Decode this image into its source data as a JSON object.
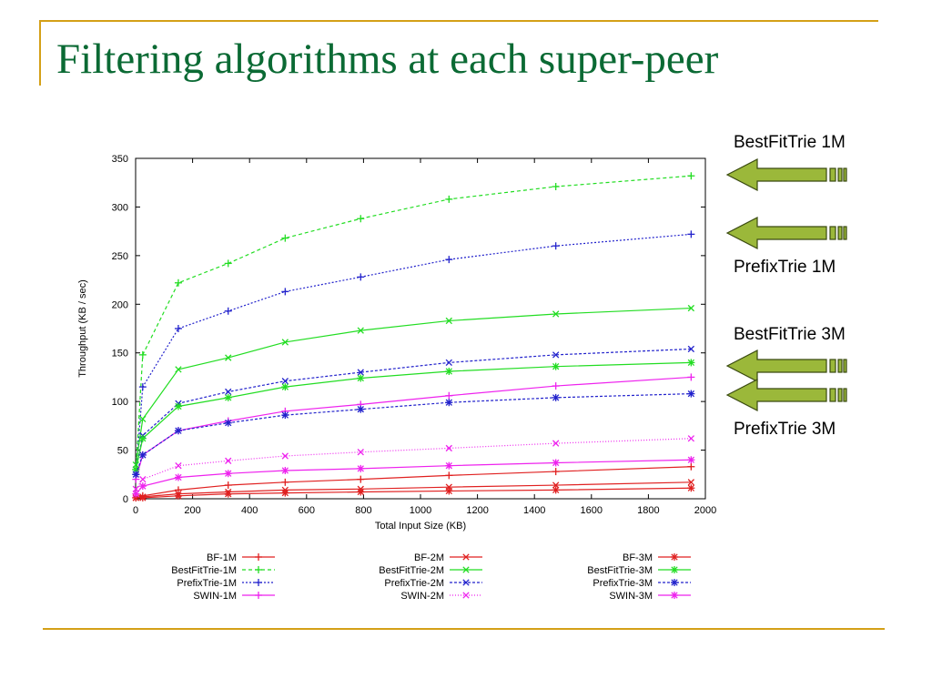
{
  "slide": {
    "title": "Filtering algorithms at each super-peer",
    "accent_color": "#d4a017",
    "title_color": "#0b6a34"
  },
  "callouts": [
    {
      "label": "BestFitTrie 1M"
    },
    {
      "label": "PrefixTrie 1M"
    },
    {
      "label": "BestFitTrie 3M"
    },
    {
      "label": "PrefixTrie 3M"
    }
  ],
  "arrow_style": {
    "fill": "#9bb83a",
    "stroke": "#3a4a10"
  },
  "chart_data": {
    "type": "line",
    "xlabel": "Total Input Size (KB)",
    "ylabel": "Throughput (KB / sec)",
    "xlim": [
      0,
      2000
    ],
    "ylim": [
      0,
      350
    ],
    "xticks": [
      0,
      200,
      400,
      600,
      800,
      1000,
      1200,
      1400,
      1600,
      1800,
      2000
    ],
    "yticks": [
      0,
      50,
      100,
      150,
      200,
      250,
      300,
      350
    ],
    "grid": false,
    "legend_position": "bottom",
    "series": [
      {
        "name": "BF-1M",
        "color": "#e02020",
        "marker": "plus",
        "dash": "",
        "points": [
          [
            1,
            1
          ],
          [
            25,
            3
          ],
          [
            150,
            9
          ],
          [
            325,
            14
          ],
          [
            525,
            17
          ],
          [
            790,
            20
          ],
          [
            1100,
            24
          ],
          [
            1475,
            28
          ],
          [
            1950,
            33
          ]
        ]
      },
      {
        "name": "BestFitTrie-1M",
        "color": "#22dd22",
        "marker": "plus",
        "dash": "4,3",
        "points": [
          [
            1,
            30
          ],
          [
            25,
            148
          ],
          [
            150,
            222
          ],
          [
            325,
            242
          ],
          [
            525,
            268
          ],
          [
            790,
            288
          ],
          [
            1100,
            308
          ],
          [
            1475,
            321
          ],
          [
            1950,
            332
          ]
        ]
      },
      {
        "name": "PrefixTrie-1M",
        "color": "#2222cc",
        "marker": "plus",
        "dash": "2,2",
        "points": [
          [
            1,
            25
          ],
          [
            25,
            115
          ],
          [
            150,
            175
          ],
          [
            325,
            193
          ],
          [
            525,
            213
          ],
          [
            790,
            228
          ],
          [
            1100,
            246
          ],
          [
            1475,
            260
          ],
          [
            1950,
            272
          ]
        ]
      },
      {
        "name": "SWIN-1M",
        "color": "#ee22ee",
        "marker": "plus",
        "dash": "",
        "points": [
          [
            1,
            20
          ],
          [
            25,
            45
          ],
          [
            150,
            70
          ],
          [
            325,
            80
          ],
          [
            525,
            90
          ],
          [
            790,
            97
          ],
          [
            1100,
            106
          ],
          [
            1475,
            116
          ],
          [
            1950,
            125
          ]
        ]
      },
      {
        "name": "BF-2M",
        "color": "#e02020",
        "marker": "x",
        "dash": "",
        "points": [
          [
            1,
            1
          ],
          [
            25,
            2
          ],
          [
            150,
            5
          ],
          [
            325,
            7
          ],
          [
            525,
            9
          ],
          [
            790,
            10
          ],
          [
            1100,
            12
          ],
          [
            1475,
            14
          ],
          [
            1950,
            17
          ]
        ]
      },
      {
        "name": "BestFitTrie-2M",
        "color": "#22dd22",
        "marker": "x",
        "dash": "",
        "points": [
          [
            1,
            35
          ],
          [
            25,
            82
          ],
          [
            150,
            133
          ],
          [
            325,
            145
          ],
          [
            525,
            161
          ],
          [
            790,
            173
          ],
          [
            1100,
            183
          ],
          [
            1475,
            190
          ],
          [
            1950,
            196
          ]
        ]
      },
      {
        "name": "PrefixTrie-2M",
        "color": "#2222cc",
        "marker": "x",
        "dash": "3,2",
        "points": [
          [
            1,
            30
          ],
          [
            25,
            65
          ],
          [
            150,
            98
          ],
          [
            325,
            110
          ],
          [
            525,
            121
          ],
          [
            790,
            130
          ],
          [
            1100,
            140
          ],
          [
            1475,
            148
          ],
          [
            1950,
            154
          ]
        ]
      },
      {
        "name": "SWIN-2M",
        "color": "#ee22ee",
        "marker": "x",
        "dash": "1,2",
        "points": [
          [
            1,
            10
          ],
          [
            25,
            20
          ],
          [
            150,
            34
          ],
          [
            325,
            39
          ],
          [
            525,
            44
          ],
          [
            790,
            48
          ],
          [
            1100,
            52
          ],
          [
            1475,
            57
          ],
          [
            1950,
            62
          ]
        ]
      },
      {
        "name": "BF-3M",
        "color": "#e02020",
        "marker": "star",
        "dash": "",
        "points": [
          [
            1,
            1
          ],
          [
            25,
            1
          ],
          [
            150,
            3
          ],
          [
            325,
            5
          ],
          [
            525,
            6
          ],
          [
            790,
            7
          ],
          [
            1100,
            8
          ],
          [
            1475,
            9
          ],
          [
            1950,
            11
          ]
        ]
      },
      {
        "name": "BestFitTrie-3M",
        "color": "#22dd22",
        "marker": "star",
        "dash": "",
        "points": [
          [
            1,
            30
          ],
          [
            25,
            62
          ],
          [
            150,
            95
          ],
          [
            325,
            104
          ],
          [
            525,
            115
          ],
          [
            790,
            124
          ],
          [
            1100,
            131
          ],
          [
            1475,
            136
          ],
          [
            1950,
            140
          ]
        ]
      },
      {
        "name": "PrefixTrie-3M",
        "color": "#2222cc",
        "marker": "star",
        "dash": "3,2",
        "points": [
          [
            1,
            25
          ],
          [
            25,
            45
          ],
          [
            150,
            70
          ],
          [
            325,
            78
          ],
          [
            525,
            86
          ],
          [
            790,
            92
          ],
          [
            1100,
            99
          ],
          [
            1475,
            104
          ],
          [
            1950,
            108
          ]
        ]
      },
      {
        "name": "SWIN-3M",
        "color": "#ee22ee",
        "marker": "star",
        "dash": "",
        "points": [
          [
            1,
            5
          ],
          [
            25,
            13
          ],
          [
            150,
            22
          ],
          [
            325,
            26
          ],
          [
            525,
            29
          ],
          [
            790,
            31
          ],
          [
            1100,
            34
          ],
          [
            1475,
            37
          ],
          [
            1950,
            40
          ]
        ]
      }
    ]
  }
}
